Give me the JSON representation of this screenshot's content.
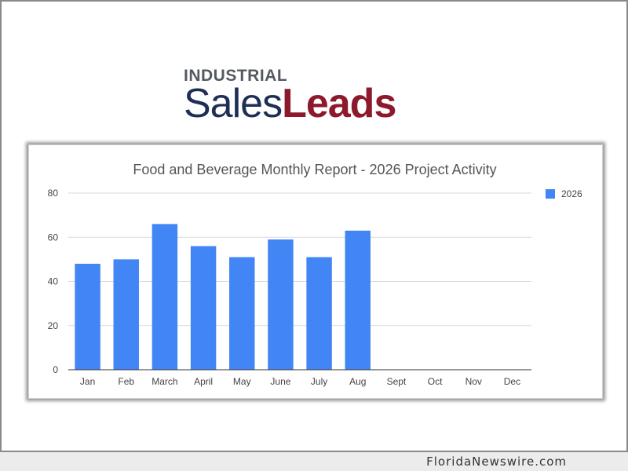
{
  "logo": {
    "line1": "INDUSTRIAL",
    "line2_part1": "Sales",
    "line2_part2": "Leads",
    "colors": {
      "grey": "#555a62",
      "navy": "#1e2e56",
      "red": "#8c1a2c"
    }
  },
  "watermark": "FloridaNewswire.com",
  "chart_data": {
    "type": "bar",
    "title": "Food and Beverage Monthly Report - 2026 Project Activity",
    "categories": [
      "Jan",
      "Feb",
      "March",
      "April",
      "May",
      "June",
      "July",
      "Aug",
      "Sept",
      "Oct",
      "Nov",
      "Dec"
    ],
    "series": [
      {
        "name": "2026",
        "color": "#4285f4",
        "values": [
          48,
          50,
          66,
          56,
          51,
          59,
          51,
          63,
          null,
          null,
          null,
          null
        ]
      }
    ],
    "ylim": [
      0,
      80
    ],
    "yticks": [
      0,
      20,
      40,
      60,
      80
    ],
    "grid": true,
    "legend": "right"
  }
}
